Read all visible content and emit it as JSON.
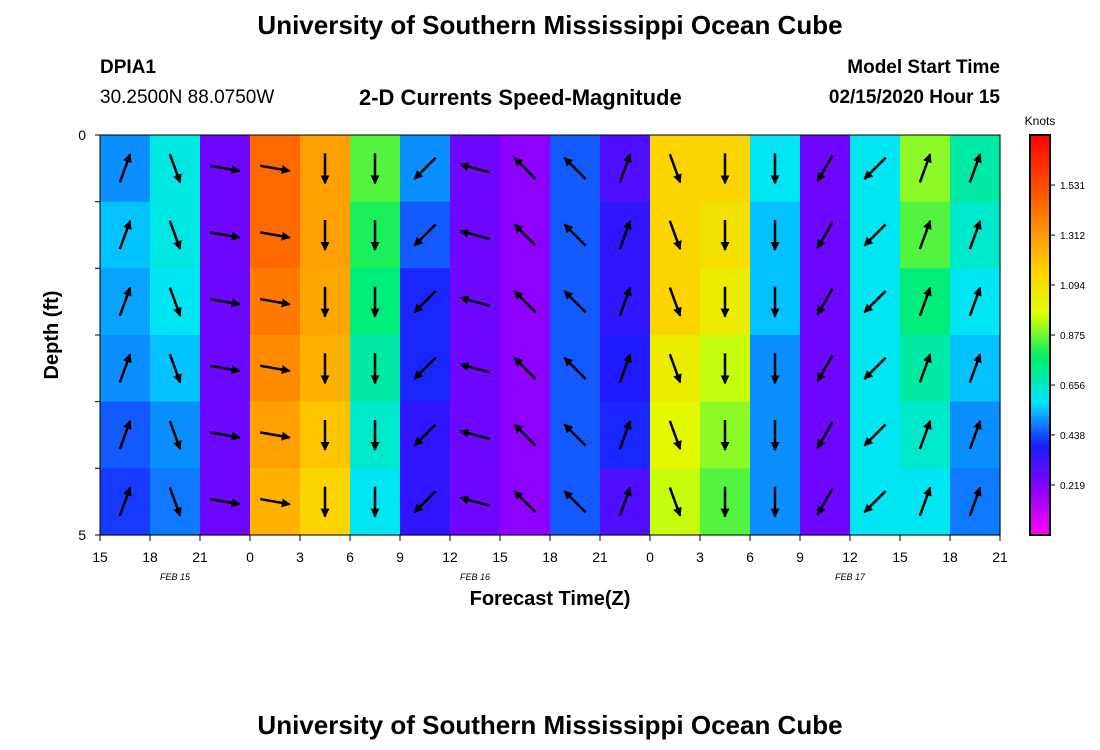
{
  "page": {
    "top_title": "University of Southern Mississippi Ocean Cube",
    "bottom_title": "University of Southern Mississippi Ocean Cube",
    "station_id": "DPIA1",
    "station_coords": "30.2500N 88.0750W",
    "plot_title": "2-D Currents Speed-Magnitude",
    "model_start_label": "Model Start Time",
    "model_start_value": "02/15/2020 Hour 15"
  },
  "chart_data": {
    "type": "heatmap",
    "title": "2-D Currents Speed-Magnitude",
    "xlabel": "Forecast Time(Z)",
    "ylabel": "Depth (ft)",
    "colorbar_label": "Knots",
    "y_range": [
      0,
      5
    ],
    "y_ticks": [
      "0",
      "5"
    ],
    "x_tick_labels": [
      "15",
      "18",
      "21",
      "0",
      "3",
      "6",
      "9",
      "12",
      "15",
      "18",
      "21",
      "0",
      "3",
      "6",
      "9",
      "12",
      "15",
      "18",
      "21"
    ],
    "date_labels": [
      {
        "text": "FEB 15",
        "at_tick": 1
      },
      {
        "text": "FEB 16",
        "at_tick": 7
      },
      {
        "text": "FEB 17",
        "at_tick": 14.5
      }
    ],
    "colorbar_ticks": [
      "1.531",
      "1.312",
      "1.094",
      "0.875",
      "0.656",
      "0.438",
      "0.219"
    ],
    "colorbar_range": [
      0.0,
      1.75
    ],
    "colorbar_colors": [
      "#ff00ff",
      "#8f00ff",
      "#1a1aff",
      "#00e5ff",
      "#00ee66",
      "#e0ff00",
      "#ffd000",
      "#ff8800",
      "#ff4400",
      "#ff0000"
    ],
    "columns": [
      {
        "hours": 0,
        "speeds": [
          0.5,
          0.55,
          0.52,
          0.5,
          0.45,
          0.42
        ]
      },
      {
        "hours": 3,
        "speeds": [
          0.62,
          0.62,
          0.6,
          0.55,
          0.5,
          0.48
        ]
      },
      {
        "hours": 6,
        "speeds": [
          0.25,
          0.25,
          0.25,
          0.25,
          0.25,
          0.25
        ]
      },
      {
        "hours": 9,
        "speeds": [
          1.45,
          1.45,
          1.4,
          1.35,
          1.3,
          1.25
        ]
      },
      {
        "hours": 12,
        "speeds": [
          1.3,
          1.3,
          1.28,
          1.25,
          1.2,
          1.15
        ]
      },
      {
        "hours": 15,
        "speeds": [
          0.85,
          0.8,
          0.75,
          0.7,
          0.65,
          0.6
        ]
      },
      {
        "hours": 18,
        "speeds": [
          0.5,
          0.45,
          0.4,
          0.4,
          0.35,
          0.35
        ]
      },
      {
        "hours": 21,
        "speeds": [
          0.25,
          0.25,
          0.25,
          0.25,
          0.25,
          0.25
        ]
      },
      {
        "hours": 24,
        "speeds": [
          0.2,
          0.2,
          0.2,
          0.2,
          0.2,
          0.2
        ]
      },
      {
        "hours": 27,
        "speeds": [
          0.45,
          0.45,
          0.45,
          0.45,
          0.45,
          0.45
        ]
      },
      {
        "hours": 30,
        "speeds": [
          0.3,
          0.35,
          0.35,
          0.38,
          0.4,
          0.3
        ]
      },
      {
        "hours": 33,
        "speeds": [
          1.15,
          1.15,
          1.15,
          1.05,
          1.0,
          0.95
        ]
      },
      {
        "hours": 36,
        "speeds": [
          1.15,
          1.1,
          1.05,
          0.95,
          0.9,
          0.85
        ]
      },
      {
        "hours": 39,
        "speeds": [
          0.6,
          0.55,
          0.55,
          0.5,
          0.5,
          0.5
        ]
      },
      {
        "hours": 42,
        "speeds": [
          0.25,
          0.25,
          0.25,
          0.25,
          0.25,
          0.25
        ]
      },
      {
        "hours": 45,
        "speeds": [
          0.6,
          0.6,
          0.6,
          0.6,
          0.6,
          0.6
        ]
      },
      {
        "hours": 48,
        "speeds": [
          0.9,
          0.85,
          0.75,
          0.7,
          0.65,
          0.6
        ]
      },
      {
        "hours": 51,
        "speeds": [
          0.7,
          0.65,
          0.6,
          0.55,
          0.5,
          0.48
        ]
      }
    ]
  }
}
